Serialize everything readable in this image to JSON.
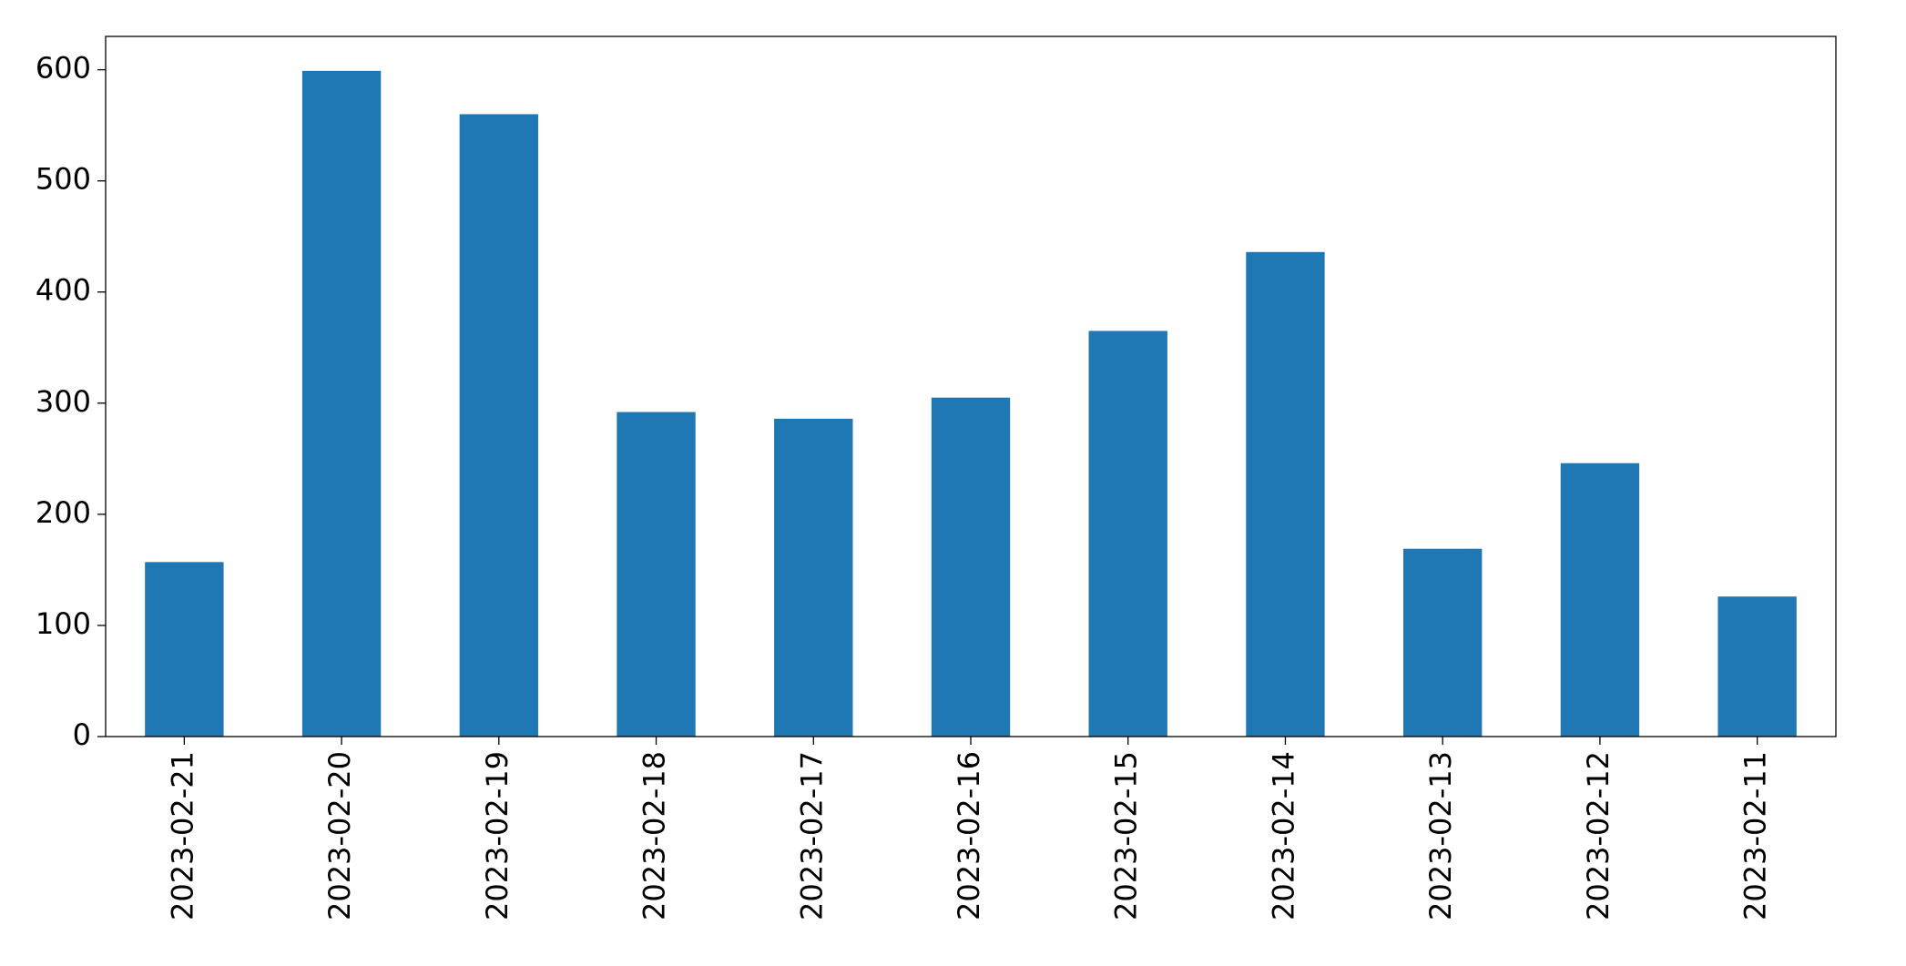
{
  "chart_data": {
    "type": "bar",
    "categories": [
      "2023-02-21",
      "2023-02-20",
      "2023-02-19",
      "2023-02-18",
      "2023-02-17",
      "2023-02-16",
      "2023-02-15",
      "2023-02-14",
      "2023-02-13",
      "2023-02-12",
      "2023-02-11"
    ],
    "values": [
      157,
      599,
      560,
      292,
      286,
      305,
      365,
      436,
      169,
      246,
      126
    ],
    "color": "#1f77b4",
    "ylim": [
      0,
      630
    ],
    "yticks": [
      0,
      100,
      200,
      300,
      400,
      500,
      600
    ],
    "grid": false
  }
}
